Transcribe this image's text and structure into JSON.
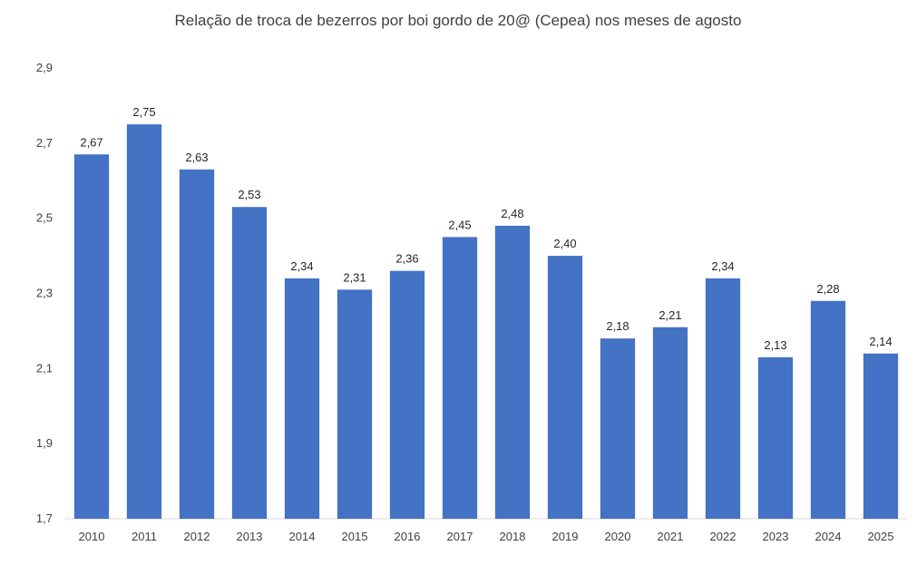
{
  "chart_data": {
    "type": "bar",
    "title": "Relação de troca de bezerros por boi gordo de 20@ (Cepea) nos meses de agosto",
    "xlabel": "",
    "ylabel": "",
    "categories": [
      "2010",
      "2011",
      "2012",
      "2013",
      "2014",
      "2015",
      "2016",
      "2017",
      "2018",
      "2019",
      "2020",
      "2021",
      "2022",
      "2023",
      "2024",
      "2025"
    ],
    "values": [
      2.67,
      2.75,
      2.63,
      2.53,
      2.34,
      2.31,
      2.36,
      2.45,
      2.48,
      2.4,
      2.18,
      2.21,
      2.34,
      2.13,
      2.28,
      2.14
    ],
    "data_labels": [
      "2,67",
      "2,75",
      "2,63",
      "2,53",
      "2,34",
      "2,31",
      "2,36",
      "2,45",
      "2,48",
      "2,40",
      "2,18",
      "2,21",
      "2,34",
      "2,13",
      "2,28",
      "2,14"
    ],
    "ylim": [
      1.7,
      2.9
    ],
    "yticks": [
      1.7,
      1.9,
      2.1,
      2.3,
      2.5,
      2.7,
      2.9
    ],
    "ytick_labels": [
      "1,7",
      "1,9",
      "2,1",
      "2,3",
      "2,5",
      "2,7",
      "2,9"
    ],
    "grid": false,
    "bar_color": "#4472C4"
  }
}
